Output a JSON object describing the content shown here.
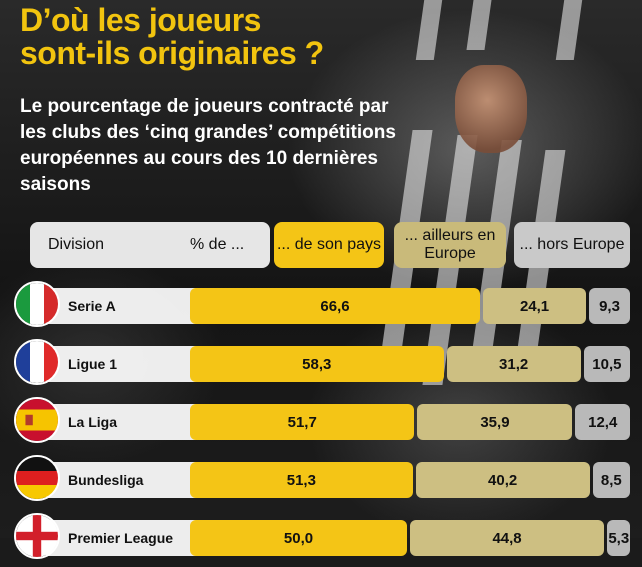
{
  "title": "D’où les joueurs\nsont-ils originaires ?",
  "subtitle": "Le pourcentage de joueurs contracté par les clubs des ‘cinq grandes’ compétitions européennes au cours des 10 dernières saisons",
  "header": {
    "division": "Division",
    "percent": "% de ...",
    "home": "... de son pays",
    "europe": "... ailleurs en Europe",
    "outside": "... hors Europe"
  },
  "colors": {
    "title": "#f2c40f",
    "home": "#f4c516",
    "europe": "#cdbf82",
    "outside": "#b9b9b9"
  },
  "chart_data": {
    "type": "bar",
    "stacked": true,
    "orientation": "horizontal",
    "categories": [
      "Serie A",
      "Ligue 1",
      "La Liga",
      "Bundesliga",
      "Premier League"
    ],
    "flags": [
      "italy-flag-icon",
      "france-flag-icon",
      "spain-flag-icon",
      "germany-flag-icon",
      "england-flag-icon"
    ],
    "series": [
      {
        "name": "... de son pays",
        "values": [
          66.6,
          58.3,
          51.7,
          51.3,
          50.0
        ],
        "labels": [
          "66,6",
          "58,3",
          "51,7",
          "51,3",
          "50,0"
        ]
      },
      {
        "name": "... ailleurs en Europe",
        "values": [
          24.1,
          31.2,
          35.9,
          40.2,
          44.8
        ],
        "labels": [
          "24,1",
          "31,2",
          "35,9",
          "40,2",
          "44,8"
        ]
      },
      {
        "name": "... hors Europe",
        "values": [
          9.3,
          10.5,
          12.4,
          8.5,
          5.3
        ],
        "labels": [
          "9,3",
          "10,5",
          "12,4",
          "8,5",
          "5,3"
        ]
      }
    ],
    "xlim": [
      0,
      100
    ]
  }
}
